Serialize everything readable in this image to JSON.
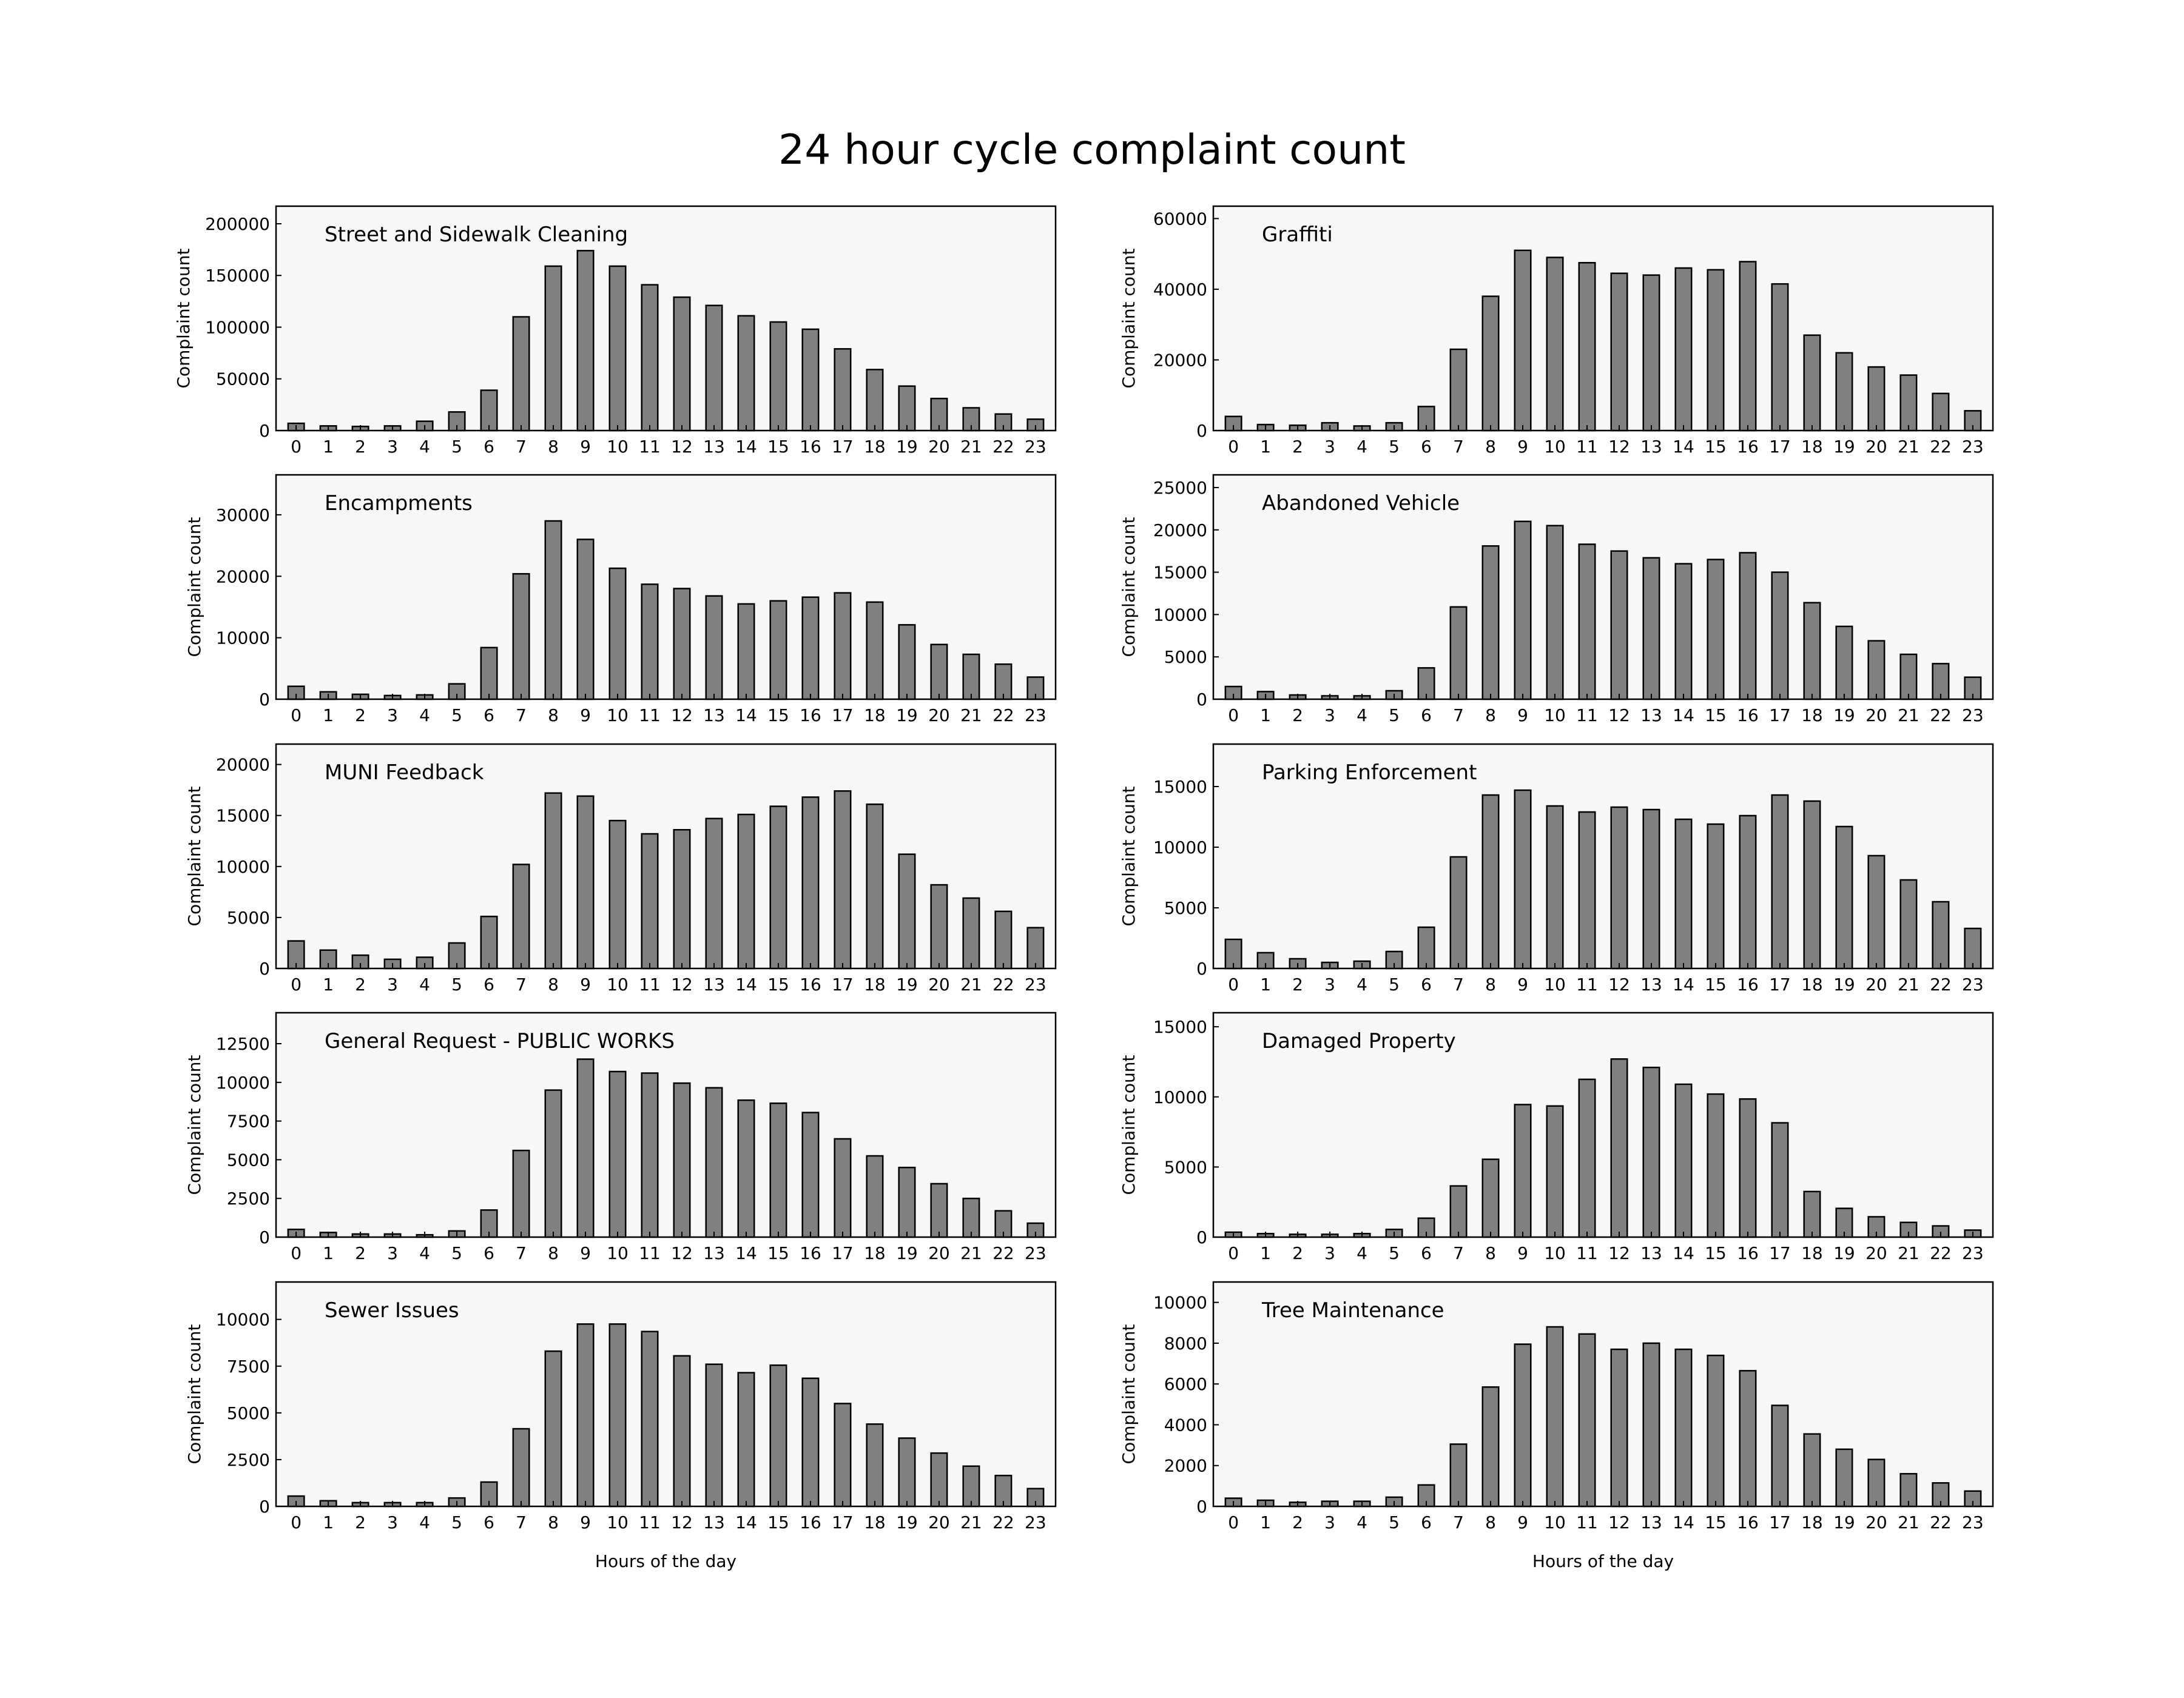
{
  "figure": {
    "title": "24 hour cycle complaint count"
  },
  "colors": {
    "axes_background": "#f7f7f7",
    "bar_fill": "#808080",
    "bar_edge": "#000000"
  },
  "chart_data": [
    {
      "type": "bar",
      "title": "Street and Sidewalk Cleaning",
      "xlabel": "",
      "ylabel": "Complaint count",
      "categories": [
        "0",
        "1",
        "2",
        "3",
        "4",
        "5",
        "6",
        "7",
        "8",
        "9",
        "10",
        "11",
        "12",
        "13",
        "14",
        "15",
        "16",
        "17",
        "18",
        "19",
        "20",
        "21",
        "22",
        "23"
      ],
      "values": [
        7000,
        4500,
        4000,
        4500,
        9000,
        18000,
        39000,
        110000,
        159000,
        174000,
        159000,
        141000,
        129000,
        121000,
        111000,
        105000,
        98000,
        79000,
        59000,
        43000,
        31000,
        22000,
        16000,
        11000
      ],
      "yticks": [
        0,
        50000,
        100000,
        150000,
        200000
      ],
      "ylim": [
        0,
        217000
      ],
      "grid": false,
      "legend": "none"
    },
    {
      "type": "bar",
      "title": "Graffiti",
      "xlabel": "",
      "ylabel": "Complaint count",
      "categories": [
        "0",
        "1",
        "2",
        "3",
        "4",
        "5",
        "6",
        "7",
        "8",
        "9",
        "10",
        "11",
        "12",
        "13",
        "14",
        "15",
        "16",
        "17",
        "18",
        "19",
        "20",
        "21",
        "22",
        "23"
      ],
      "values": [
        4000,
        1700,
        1500,
        2200,
        1300,
        2200,
        6800,
        23000,
        38000,
        51000,
        49000,
        47500,
        44500,
        44000,
        46000,
        45500,
        47800,
        41500,
        27000,
        22000,
        18000,
        15700,
        10500,
        5600
      ],
      "yticks": [
        0,
        20000,
        40000,
        60000
      ],
      "ylim": [
        0,
        63500
      ],
      "grid": false,
      "legend": "none"
    },
    {
      "type": "bar",
      "title": "Encampments",
      "xlabel": "",
      "ylabel": "Complaint count",
      "categories": [
        "0",
        "1",
        "2",
        "3",
        "4",
        "5",
        "6",
        "7",
        "8",
        "9",
        "10",
        "11",
        "12",
        "13",
        "14",
        "15",
        "16",
        "17",
        "18",
        "19",
        "20",
        "21",
        "22",
        "23"
      ],
      "values": [
        2100,
        1200,
        800,
        600,
        700,
        2500,
        8400,
        20400,
        29000,
        26000,
        21300,
        18700,
        18000,
        16800,
        15500,
        16000,
        16600,
        17300,
        15800,
        12100,
        8900,
        7300,
        5700,
        3600
      ],
      "yticks": [
        0,
        10000,
        20000,
        30000
      ],
      "ylim": [
        0,
        36500
      ],
      "grid": false,
      "legend": "none"
    },
    {
      "type": "bar",
      "title": "Abandoned Vehicle",
      "xlabel": "",
      "ylabel": "Complaint count",
      "categories": [
        "0",
        "1",
        "2",
        "3",
        "4",
        "5",
        "6",
        "7",
        "8",
        "9",
        "10",
        "11",
        "12",
        "13",
        "14",
        "15",
        "16",
        "17",
        "18",
        "19",
        "20",
        "21",
        "22",
        "23"
      ],
      "values": [
        1500,
        900,
        500,
        400,
        400,
        1000,
        3700,
        10900,
        18100,
        21000,
        20500,
        18300,
        17500,
        16700,
        16000,
        16500,
        17300,
        15000,
        11400,
        8600,
        6900,
        5300,
        4200,
        2600
      ],
      "yticks": [
        0,
        5000,
        10000,
        15000,
        20000,
        25000
      ],
      "ylim": [
        0,
        26500
      ],
      "grid": false,
      "legend": "none"
    },
    {
      "type": "bar",
      "title": "MUNI Feedback",
      "xlabel": "",
      "ylabel": "Complaint count",
      "categories": [
        "0",
        "1",
        "2",
        "3",
        "4",
        "5",
        "6",
        "7",
        "8",
        "9",
        "10",
        "11",
        "12",
        "13",
        "14",
        "15",
        "16",
        "17",
        "18",
        "19",
        "20",
        "21",
        "22",
        "23"
      ],
      "values": [
        2700,
        1800,
        1300,
        900,
        1100,
        2500,
        5100,
        10200,
        17200,
        16900,
        14500,
        13200,
        13600,
        14700,
        15100,
        15900,
        16800,
        17400,
        16100,
        11200,
        8200,
        6900,
        5600,
        4000
      ],
      "yticks": [
        0,
        5000,
        10000,
        15000,
        20000
      ],
      "ylim": [
        0,
        22000
      ],
      "grid": false,
      "legend": "none"
    },
    {
      "type": "bar",
      "title": "Parking Enforcement",
      "xlabel": "",
      "ylabel": "Complaint count",
      "categories": [
        "0",
        "1",
        "2",
        "3",
        "4",
        "5",
        "6",
        "7",
        "8",
        "9",
        "10",
        "11",
        "12",
        "13",
        "14",
        "15",
        "16",
        "17",
        "18",
        "19",
        "20",
        "21",
        "22",
        "23"
      ],
      "values": [
        2400,
        1300,
        800,
        500,
        600,
        1400,
        3400,
        9200,
        14300,
        14700,
        13400,
        12900,
        13300,
        13100,
        12300,
        11900,
        12600,
        14300,
        13800,
        11700,
        9300,
        7300,
        5500,
        3300
      ],
      "yticks": [
        0,
        5000,
        10000,
        15000
      ],
      "ylim": [
        0,
        18500
      ],
      "grid": false,
      "legend": "none"
    },
    {
      "type": "bar",
      "title": "General Request - PUBLIC WORKS",
      "xlabel": "",
      "ylabel": "Complaint count",
      "categories": [
        "0",
        "1",
        "2",
        "3",
        "4",
        "5",
        "6",
        "7",
        "8",
        "9",
        "10",
        "11",
        "12",
        "13",
        "14",
        "15",
        "16",
        "17",
        "18",
        "19",
        "20",
        "21",
        "22",
        "23"
      ],
      "values": [
        500,
        300,
        200,
        200,
        150,
        400,
        1750,
        5600,
        9500,
        11500,
        10700,
        10600,
        9950,
        9650,
        8850,
        8650,
        8050,
        6350,
        5250,
        4500,
        3450,
        2500,
        1700,
        900
      ],
      "yticks": [
        0,
        2500,
        5000,
        7500,
        10000,
        12500
      ],
      "ylim": [
        0,
        14500
      ],
      "grid": false,
      "legend": "none"
    },
    {
      "type": "bar",
      "title": "Damaged Property",
      "xlabel": "",
      "ylabel": "Complaint count",
      "categories": [
        "0",
        "1",
        "2",
        "3",
        "4",
        "5",
        "6",
        "7",
        "8",
        "9",
        "10",
        "11",
        "12",
        "13",
        "14",
        "15",
        "16",
        "17",
        "18",
        "19",
        "20",
        "21",
        "22",
        "23"
      ],
      "values": [
        350,
        250,
        200,
        200,
        250,
        550,
        1350,
        3650,
        5550,
        9450,
        9350,
        11250,
        12700,
        12100,
        10900,
        10200,
        9850,
        8150,
        3250,
        2050,
        1450,
        1050,
        800,
        500
      ],
      "yticks": [
        0,
        5000,
        10000,
        15000
      ],
      "ylim": [
        0,
        16000
      ],
      "grid": false,
      "legend": "none"
    },
    {
      "type": "bar",
      "title": "Sewer Issues",
      "xlabel": "Hours of the day",
      "ylabel": "Complaint count",
      "categories": [
        "0",
        "1",
        "2",
        "3",
        "4",
        "5",
        "6",
        "7",
        "8",
        "9",
        "10",
        "11",
        "12",
        "13",
        "14",
        "15",
        "16",
        "17",
        "18",
        "19",
        "20",
        "21",
        "22",
        "23"
      ],
      "values": [
        550,
        300,
        200,
        200,
        200,
        450,
        1300,
        4150,
        8300,
        9750,
        9750,
        9350,
        8050,
        7600,
        7150,
        7550,
        6850,
        5500,
        4400,
        3650,
        2850,
        2150,
        1650,
        950
      ],
      "yticks": [
        0,
        2500,
        5000,
        7500,
        10000
      ],
      "ylim": [
        0,
        12000
      ],
      "grid": false,
      "legend": "none"
    },
    {
      "type": "bar",
      "title": "Tree Maintenance",
      "xlabel": "Hours of the day",
      "ylabel": "Complaint count",
      "categories": [
        "0",
        "1",
        "2",
        "3",
        "4",
        "5",
        "6",
        "7",
        "8",
        "9",
        "10",
        "11",
        "12",
        "13",
        "14",
        "15",
        "16",
        "17",
        "18",
        "19",
        "20",
        "21",
        "22",
        "23"
      ],
      "values": [
        400,
        300,
        200,
        250,
        250,
        450,
        1050,
        3050,
        5850,
        7950,
        8800,
        8450,
        7700,
        8000,
        7700,
        7400,
        6650,
        4950,
        3550,
        2800,
        2300,
        1600,
        1150,
        750
      ],
      "yticks": [
        0,
        2000,
        4000,
        6000,
        8000,
        10000
      ],
      "ylim": [
        0,
        11000
      ],
      "grid": false,
      "legend": "none"
    }
  ]
}
